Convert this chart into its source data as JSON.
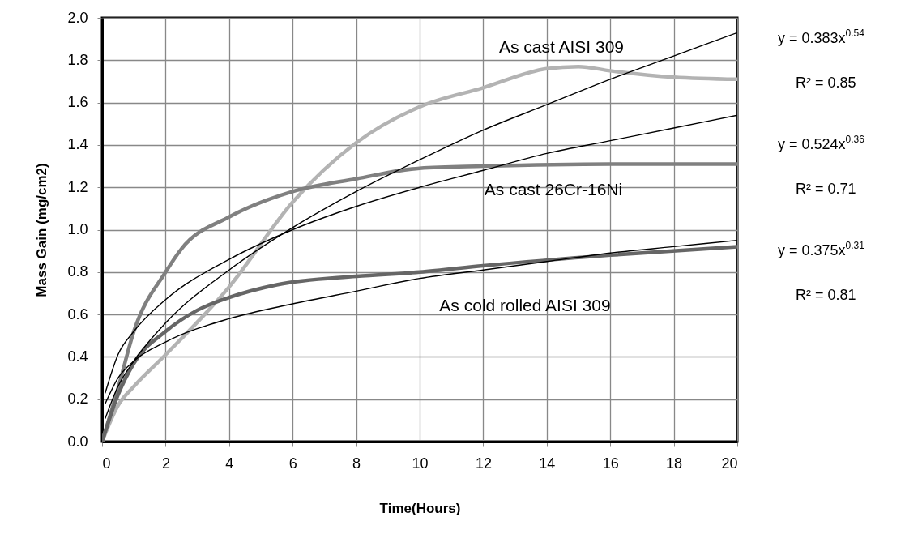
{
  "chart_data": {
    "type": "line",
    "xlabel": "Time(Hours)",
    "ylabel": "Mass Gain  (mg/cm2)",
    "xlim": [
      0,
      20
    ],
    "xticks": [
      0,
      2,
      4,
      6,
      8,
      10,
      12,
      14,
      16,
      18,
      20
    ],
    "ylim": [
      0,
      2.0
    ],
    "yticks": [
      {
        "value": 0,
        "label": "0.0"
      },
      0.2,
      0.4,
      0.6,
      0.8,
      {
        "value": 1,
        "label": "1.0"
      },
      1.2,
      1.4,
      1.6,
      1.8,
      {
        "value": 2,
        "label": "2.0"
      }
    ],
    "grid": true,
    "series": [
      {
        "name": "As cast AISI 309",
        "color": "#b3b3b3",
        "x": [
          0,
          0.5,
          1,
          2,
          4,
          6,
          8,
          10,
          12,
          14,
          15,
          16,
          18,
          20
        ],
        "values": [
          0,
          0.17,
          0.26,
          0.41,
          0.73,
          1.13,
          1.41,
          1.58,
          1.67,
          1.76,
          1.77,
          1.75,
          1.72,
          1.71
        ]
      },
      {
        "name": "As cast 26Cr-16Ni",
        "color": "#808080",
        "x": [
          0,
          0.5,
          1,
          2,
          2.5,
          4,
          6,
          8,
          10,
          12,
          16,
          20
        ],
        "values": [
          0,
          0.25,
          0.52,
          0.8,
          0.91,
          1.06,
          1.18,
          1.24,
          1.29,
          1.3,
          1.31,
          1.31
        ]
      },
      {
        "name": "As cold rolled AISI 309",
        "color": "#666666",
        "x": [
          0,
          0.5,
          1,
          2,
          3,
          4,
          5.5,
          8,
          10,
          12,
          16,
          20
        ],
        "values": [
          0,
          0.22,
          0.37,
          0.52,
          0.62,
          0.68,
          0.74,
          0.78,
          0.8,
          0.83,
          0.88,
          0.92
        ]
      },
      {
        "type": "line",
        "color": "#000000",
        "x": [
          0.1,
          0.5,
          1,
          2,
          4,
          6,
          8,
          10,
          12,
          14,
          16,
          18,
          20
        ],
        "values": [
          0.11,
          0.26,
          0.38,
          0.56,
          0.81,
          1.01,
          1.18,
          1.33,
          1.47,
          1.59,
          1.71,
          1.82,
          1.93
        ]
      },
      {
        "type": "line",
        "color": "#000000",
        "x": [
          0.1,
          0.5,
          1,
          2,
          4,
          6,
          8,
          10,
          12,
          14,
          16,
          18,
          20
        ],
        "values": [
          0.23,
          0.41,
          0.52,
          0.67,
          0.86,
          1.0,
          1.11,
          1.2,
          1.28,
          1.36,
          1.42,
          1.48,
          1.54
        ]
      },
      {
        "type": "line",
        "color": "#000000",
        "x": [
          0.1,
          0.5,
          1,
          2,
          4,
          6,
          8,
          10,
          12,
          14,
          16,
          18,
          20
        ],
        "values": [
          0.18,
          0.3,
          0.38,
          0.47,
          0.58,
          0.65,
          0.71,
          0.77,
          0.81,
          0.85,
          0.89,
          0.92,
          0.95
        ]
      }
    ],
    "annotations": [
      "y = 0.383x$^{0.54}$",
      "R² = 0.85",
      "y = 0.524x$^{0.36}$",
      "R² = 0.71",
      "y = 0.375x$^{0.31}$",
      "R² = 0.81"
    ]
  }
}
